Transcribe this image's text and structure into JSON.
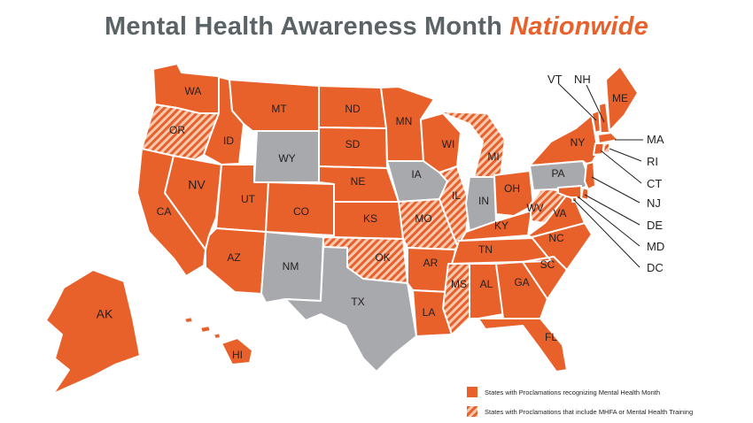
{
  "title": {
    "main": "Mental Health Awareness Month",
    "accent": "Nationwide"
  },
  "colors": {
    "proclamation": "#e8602a",
    "no_proclamation": "#a7a9ac",
    "hatch_base": "#f7c9b0",
    "border": "#ffffff"
  },
  "legend": {
    "solid": "States with Proclamations recognizing Mental Health Month",
    "hatched": "States with Proclamations that include MHFA or Mental Health Training"
  },
  "categories": {
    "solid": [
      "WA",
      "ID",
      "MT",
      "ND",
      "SD",
      "NE",
      "KS",
      "CO",
      "UT",
      "NV",
      "CA",
      "AZ",
      "MN",
      "WI",
      "AR",
      "LA",
      "TN",
      "AL",
      "GA",
      "FL",
      "SC",
      "NC",
      "VA",
      "KY",
      "OH",
      "NY",
      "VT",
      "NH",
      "ME",
      "MA",
      "CT",
      "NJ",
      "DE",
      "MD",
      "DC",
      "AK",
      "HI"
    ],
    "hatched": [
      "OR",
      "MO",
      "IL",
      "MI",
      "OK",
      "MS",
      "WV",
      "RI"
    ],
    "none": [
      "WY",
      "NM",
      "TX",
      "IA",
      "IN",
      "PA"
    ]
  },
  "labels": {
    "WA": "WA",
    "OR": "OR",
    "ID": "ID",
    "MT": "MT",
    "ND": "ND",
    "SD": "SD",
    "NE": "NE",
    "KS": "KS",
    "CO": "CO",
    "UT": "UT",
    "NV": "NV",
    "CA": "CA",
    "AZ": "AZ",
    "NM": "NM",
    "TX": "TX",
    "OK": "OK",
    "MN": "MN",
    "WY": "WY",
    "IA": "IA",
    "MO": "MO",
    "AR": "AR",
    "LA": "LA",
    "WI": "WI",
    "IL": "IL",
    "MI": "MI",
    "IN": "IN",
    "OH": "OH",
    "KY": "KY",
    "TN": "TN",
    "MS": "MS",
    "AL": "AL",
    "GA": "GA",
    "FL": "FL",
    "SC": "SC",
    "NC": "NC",
    "VA": "VA",
    "WV": "WV",
    "PA": "PA",
    "NY": "NY",
    "ME": "ME",
    "AK": "AK",
    "HI": "HI"
  },
  "callouts": {
    "VT": "VT",
    "NH": "NH",
    "MA": "MA",
    "RI": "RI",
    "CT": "CT",
    "NJ": "NJ",
    "DE": "DE",
    "MD": "MD",
    "DC": "DC"
  }
}
